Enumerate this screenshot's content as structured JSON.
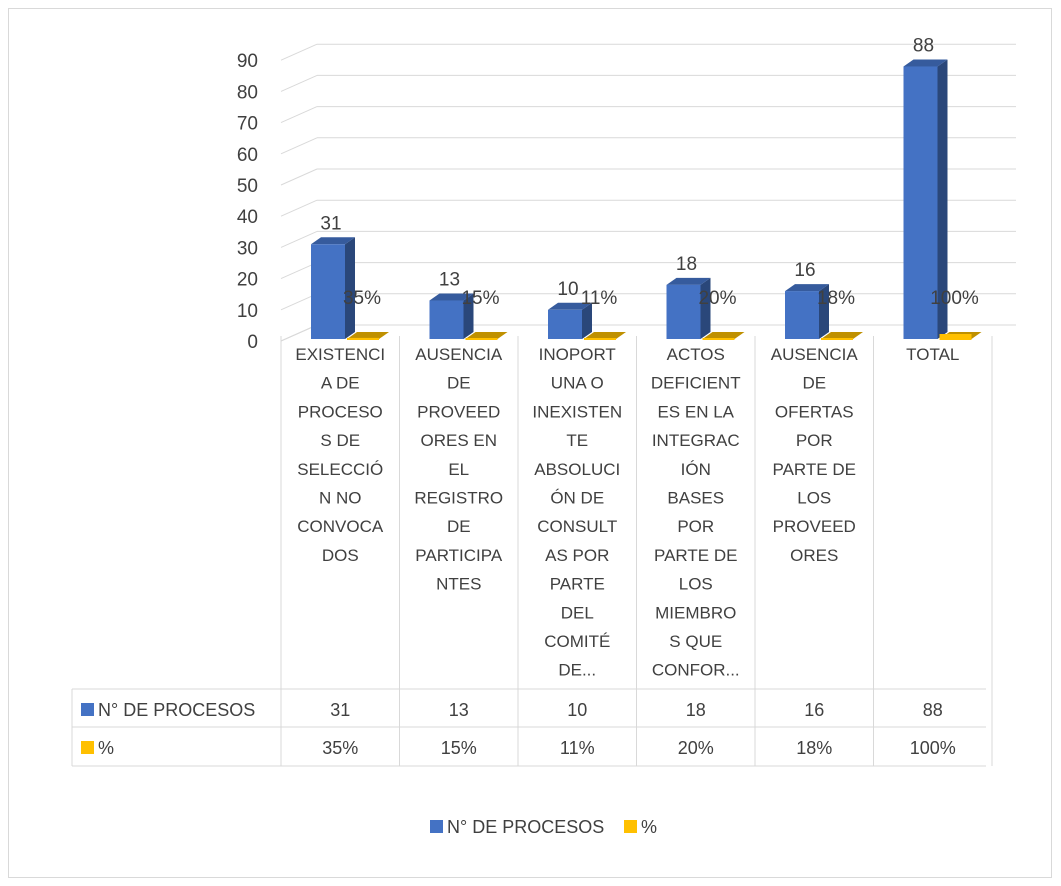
{
  "chart_data": {
    "type": "bar",
    "style": "3d-clustered-column-with-data-table",
    "categories": [
      [
        "EXISTENCI",
        "A DE",
        "PROCESO",
        "S DE",
        "SELECCIÓ",
        "N NO",
        "CONVOCA",
        "DOS"
      ],
      [
        "AUSENCIA",
        "DE",
        "PROVEED",
        "ORES EN",
        "EL",
        "REGISTRO",
        "DE",
        "PARTICIPA",
        "NTES"
      ],
      [
        "INOPORT",
        "UNA O",
        "INEXISTEN",
        "TE",
        "ABSOLUCI",
        "ÓN DE",
        "CONSULT",
        "AS POR",
        "PARTE",
        "DEL",
        "COMITÉ",
        "DE..."
      ],
      [
        "ACTOS",
        "DEFICIENT",
        "ES EN LA",
        "INTEGRAC",
        "IÓN",
        "BASES",
        "POR",
        "PARTE DE",
        "LOS",
        "MIEMBRO",
        "S QUE",
        "CONFOR..."
      ],
      [
        "AUSENCIA",
        "DE",
        "OFERTAS",
        "POR",
        "PARTE DE",
        "LOS",
        "PROVEED",
        "ORES"
      ],
      [
        "TOTAL"
      ]
    ],
    "series": [
      {
        "name": "N° DE PROCESOS",
        "values": [
          31,
          13,
          10,
          18,
          16,
          88
        ],
        "labels": [
          "31",
          "13",
          "10",
          "18",
          "16",
          "88"
        ],
        "color": "#4472C4"
      },
      {
        "name": "%",
        "values": [
          0.35,
          0.15,
          0.11,
          0.2,
          0.18,
          1.0
        ],
        "labels": [
          "35%",
          "15%",
          "11%",
          "20%",
          "18%",
          "100%"
        ],
        "color": "#FFC000"
      }
    ],
    "y_ticks": [
      "0",
      "10",
      "20",
      "30",
      "40",
      "50",
      "60",
      "70",
      "80",
      "90"
    ],
    "ylim": [
      0,
      95
    ],
    "grid": true,
    "legend_position": "bottom"
  }
}
